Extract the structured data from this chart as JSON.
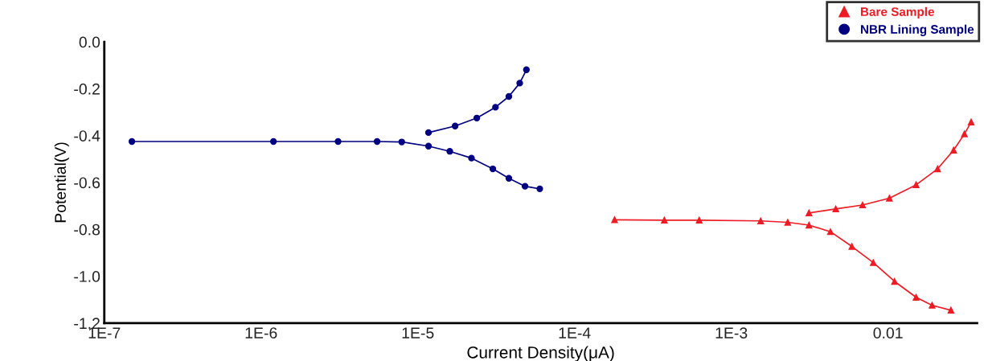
{
  "chart_data": {
    "type": "line",
    "xlabel": "Current Density(μA)",
    "ylabel": "Potential(V)",
    "log": "x",
    "xlim": [
      1e-07,
      0.037
    ],
    "xticks": [
      {
        "value": 1e-07,
        "label": "1E-7"
      },
      {
        "value": 1e-06,
        "label": "1E-6"
      },
      {
        "value": 1e-05,
        "label": "1E-5"
      },
      {
        "value": 0.0001,
        "label": "1E-4"
      },
      {
        "value": 0.001,
        "label": "1E-3"
      },
      {
        "value": 0.01,
        "label": "0.01"
      }
    ],
    "ylim": [
      -1.2,
      0
    ],
    "yticks": [
      {
        "value": 0,
        "label": "0.0"
      },
      {
        "value": -0.2,
        "label": "-0.2"
      },
      {
        "value": -0.4,
        "label": "-0.4"
      },
      {
        "value": -0.6,
        "label": "-0.6"
      },
      {
        "value": -0.8,
        "label": "-0.8"
      },
      {
        "value": -1.0,
        "label": "-1.0"
      },
      {
        "value": -1.2,
        "label": "-1.2"
      }
    ],
    "grid": false,
    "legend": "top right",
    "series": [
      {
        "name": "Bare Sample",
        "color": "#ed1c24",
        "marker": "triangle",
        "x": [
          0.0252,
          0.0191,
          0.0151,
          0.011,
          0.00805,
          0.00588,
          0.00429,
          0.00313,
          0.00229,
          0.00154,
          0.000624,
          0.000374,
          0.00018
        ],
        "values": [
          -1.145,
          -1.124,
          -1.09,
          -1.022,
          -0.942,
          -0.873,
          -0.81,
          -0.782,
          -0.77,
          -0.764,
          -0.761,
          -0.761,
          -0.759
        ]
      },
      {
        "color": "#ed1c24",
        "marker": "triangle",
        "x": [
          0.00313,
          0.00464,
          0.00688,
          0.0102,
          0.0151,
          0.0207,
          0.0262,
          0.0307,
          0.0339
        ],
        "values": [
          -0.73,
          -0.713,
          -0.696,
          -0.667,
          -0.61,
          -0.542,
          -0.462,
          -0.393,
          -0.342
        ]
      },
      {
        "name": "NBR Lining Sample",
        "color": "#000080",
        "marker": "circle",
        "x": [
          6e-05,
          4.83e-05,
          3.81e-05,
          3.01e-05,
          2.2e-05,
          1.6e-05,
          1.17e-05,
          7.9e-06,
          5.5e-06,
          3.1e-06,
          1.2e-06,
          1.5e-07
        ],
        "values": [
          -0.627,
          -0.616,
          -0.582,
          -0.542,
          -0.496,
          -0.467,
          -0.445,
          -0.427,
          -0.425,
          -0.425,
          -0.425,
          -0.425
        ]
      },
      {
        "color": "#000080",
        "marker": "circle",
        "x": [
          1.17e-05,
          1.73e-05,
          2.38e-05,
          3.13e-05,
          3.81e-05,
          4.47e-05,
          4.93e-05
        ],
        "values": [
          -0.387,
          -0.359,
          -0.325,
          -0.279,
          -0.233,
          -0.176,
          -0.119
        ]
      }
    ]
  }
}
